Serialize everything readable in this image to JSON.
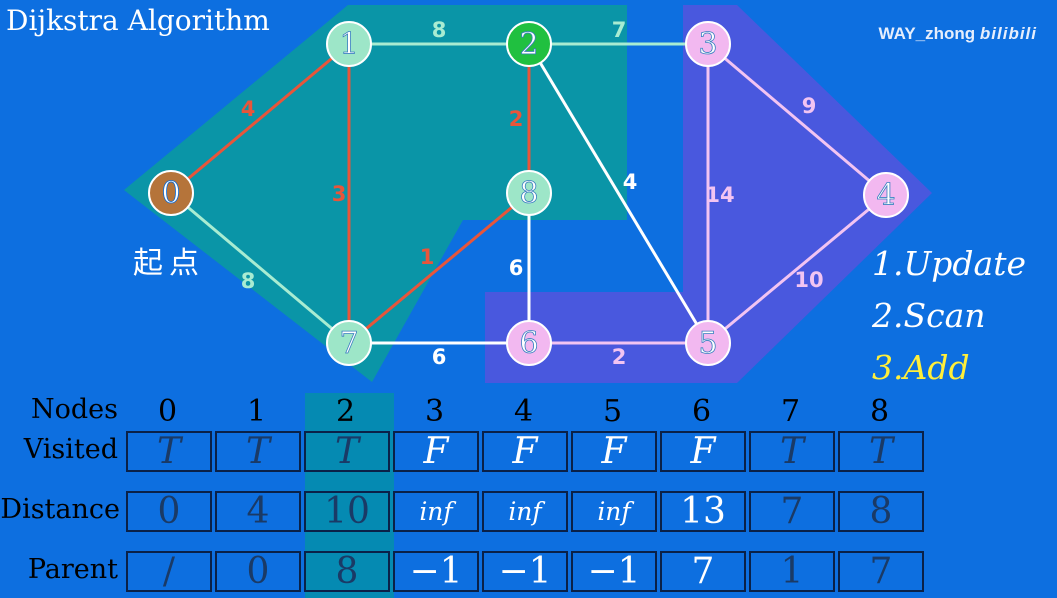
{
  "title": "Dijkstra Algorithm",
  "watermark": {
    "user": "WAY_zhong",
    "brand": "bilibili"
  },
  "start_label": "起点",
  "steps": [
    "1.Update",
    "2.Scan",
    "3.Add"
  ],
  "active_step": 2,
  "colors": {
    "background": "#0d6fe0",
    "visited_region": "#0a9c9c",
    "frontier_region": "#5555dd",
    "visited_node": "#9de6c8",
    "unvisited_node": "#f2b8f0",
    "start_node": "#b5743a",
    "current_node": "#20c040",
    "tree_edge": "#e8553a",
    "edge_visited": "#a8ecd2",
    "edge_unvisited": "#f2c4f2",
    "edge_white": "#ffffff",
    "active_step": "#ffef3a"
  },
  "graph": {
    "nodes": [
      {
        "id": "0",
        "state": "start"
      },
      {
        "id": "1",
        "state": "visited"
      },
      {
        "id": "2",
        "state": "current"
      },
      {
        "id": "3",
        "state": "unvisited"
      },
      {
        "id": "4",
        "state": "unvisited"
      },
      {
        "id": "5",
        "state": "unvisited"
      },
      {
        "id": "6",
        "state": "unvisited"
      },
      {
        "id": "7",
        "state": "visited"
      },
      {
        "id": "8",
        "state": "visited"
      }
    ],
    "edges": [
      {
        "from": "0",
        "to": "1",
        "weight": "4",
        "kind": "tree"
      },
      {
        "from": "0",
        "to": "7",
        "weight": "8",
        "kind": "visited"
      },
      {
        "from": "1",
        "to": "2",
        "weight": "8",
        "kind": "visited"
      },
      {
        "from": "1",
        "to": "7",
        "weight": "3",
        "kind": "tree"
      },
      {
        "from": "2",
        "to": "3",
        "weight": "7",
        "kind": "visited"
      },
      {
        "from": "2",
        "to": "8",
        "weight": "2",
        "kind": "tree"
      },
      {
        "from": "2",
        "to": "5",
        "weight": "4",
        "kind": "white"
      },
      {
        "from": "3",
        "to": "4",
        "weight": "9",
        "kind": "unvisited"
      },
      {
        "from": "3",
        "to": "5",
        "weight": "14",
        "kind": "unvisited"
      },
      {
        "from": "4",
        "to": "5",
        "weight": "10",
        "kind": "unvisited"
      },
      {
        "from": "5",
        "to": "6",
        "weight": "2",
        "kind": "unvisited"
      },
      {
        "from": "6",
        "to": "7",
        "weight": "6",
        "kind": "white"
      },
      {
        "from": "6",
        "to": "8",
        "weight": "6",
        "kind": "white"
      },
      {
        "from": "7",
        "to": "8",
        "weight": "1",
        "kind": "tree"
      }
    ]
  },
  "table": {
    "row_labels": {
      "nodes": "Nodes",
      "visited": "Visited",
      "distance": "Distance",
      "parent": "Parent"
    },
    "highlight_column": 2,
    "columns": [
      {
        "node": "0",
        "visited": "T",
        "distance": "0",
        "parent": "/"
      },
      {
        "node": "1",
        "visited": "T",
        "distance": "4",
        "parent": "0"
      },
      {
        "node": "2",
        "visited": "T",
        "distance": "10",
        "parent": "8"
      },
      {
        "node": "3",
        "visited": "F",
        "distance": "inf",
        "parent": "−1"
      },
      {
        "node": "4",
        "visited": "F",
        "distance": "inf",
        "parent": "−1"
      },
      {
        "node": "5",
        "visited": "F",
        "distance": "inf",
        "parent": "−1"
      },
      {
        "node": "6",
        "visited": "F",
        "distance": "13",
        "parent": "7"
      },
      {
        "node": "7",
        "visited": "T",
        "distance": "7",
        "parent": "1"
      },
      {
        "node": "8",
        "visited": "T",
        "distance": "8",
        "parent": "7"
      }
    ]
  }
}
